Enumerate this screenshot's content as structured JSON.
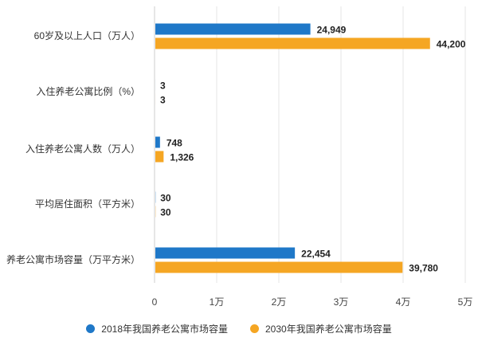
{
  "chart_data": {
    "type": "bar",
    "orientation": "horizontal",
    "title": "",
    "categories": [
      "60岁及以上人口（万人）",
      "入住养老公寓比例（%）",
      "入住养老公寓人数（万人）",
      "平均居住面积（平方米）",
      "养老公寓市场容量（万平方米）"
    ],
    "series": [
      {
        "name": "2018年我国养老公寓市场容量",
        "color": "#1f78c8",
        "values": [
          24949,
          3,
          748,
          30,
          22454
        ],
        "labels": [
          "24,949",
          "3",
          "748",
          "30",
          "22,454"
        ]
      },
      {
        "name": "2030年我国养老公寓市场容量",
        "color": "#f5a623",
        "values": [
          44200,
          3,
          1326,
          30,
          39780
        ],
        "labels": [
          "44,200",
          "3",
          "1,326",
          "30",
          "39,780"
        ]
      }
    ],
    "xlim": [
      0,
      50000
    ],
    "xticks": [
      0,
      10000,
      20000,
      30000,
      40000,
      50000
    ],
    "xtick_labels": [
      "0",
      "1万",
      "2万",
      "3万",
      "4万",
      "5万"
    ],
    "legend_position": "bottom"
  }
}
